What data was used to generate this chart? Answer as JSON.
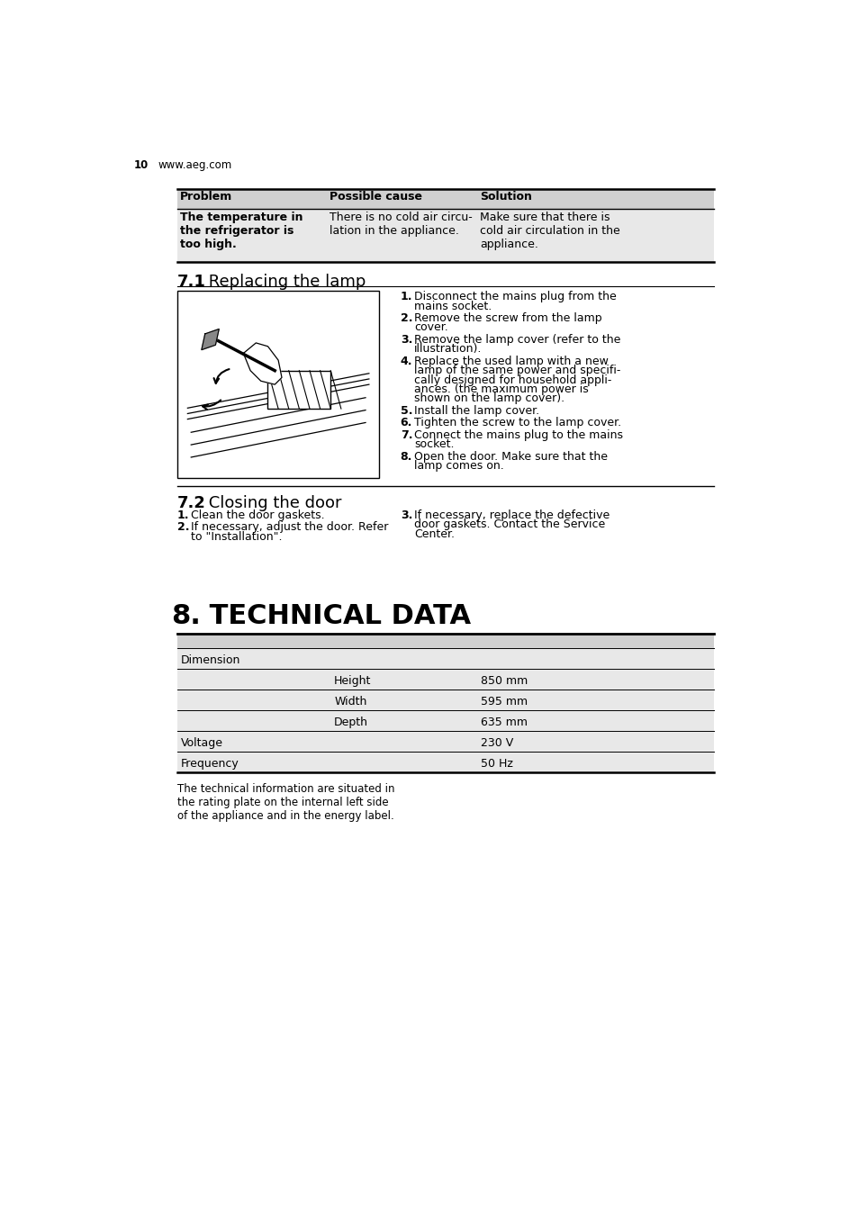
{
  "page_number": "10",
  "website": "www.aeg.com",
  "background_color": "#ffffff",
  "table_header_bg": "#d0d0d0",
  "table_row_bg": "#e8e8e8",
  "problem_table": {
    "headers": [
      "Problem",
      "Possible cause",
      "Solution"
    ],
    "rows": [
      {
        "problem": "The temperature in\nthe refrigerator is\ntoo high.",
        "cause": "There is no cold air circu-\nlation in the appliance.",
        "solution": "Make sure that there is\ncold air circulation in the\nappliance."
      }
    ]
  },
  "section_71_title_bold": "7.1",
  "section_71_title_normal": " Replacing the lamp",
  "section_71_steps": [
    "Disconnect the mains plug from the\nmains socket.",
    "Remove the screw from the lamp\ncover.",
    "Remove the lamp cover (refer to the\nillustration).",
    "Replace the used lamp with a new\nlamp of the same power and specifi-\ncally designed for household appli-\nances. (the maximum power is\nshown on the lamp cover).",
    "Install the lamp cover.",
    "Tighten the screw to the lamp cover.",
    "Connect the mains plug to the mains\nsocket.",
    "Open the door. Make sure that the\nlamp comes on."
  ],
  "section_72_title_bold": "7.2",
  "section_72_title_normal": " Closing the door",
  "section_72_left_steps": [
    "Clean the door gaskets.",
    "If necessary, adjust the door. Refer\nto \"Installation\"."
  ],
  "section_72_right_steps": [
    "If necessary, replace the defective\ndoor gaskets. Contact the Service\nCenter."
  ],
  "section_8_number": "8.",
  "section_8_title": " TECHNICAL DATA",
  "tech_table_rows": [
    {
      "col1": "Dimension",
      "col2": "",
      "col3": ""
    },
    {
      "col1": "",
      "col2": "Height",
      "col3": "850 mm"
    },
    {
      "col1": "",
      "col2": "Width",
      "col3": "595 mm"
    },
    {
      "col1": "",
      "col2": "Depth",
      "col3": "635 mm"
    },
    {
      "col1": "Voltage",
      "col2": "",
      "col3": "230 V"
    },
    {
      "col1": "Frequency",
      "col2": "",
      "col3": "50 Hz"
    }
  ],
  "tech_note": "The technical information are situated in\nthe rating plate on the internal left side\nof the appliance and in the energy label."
}
